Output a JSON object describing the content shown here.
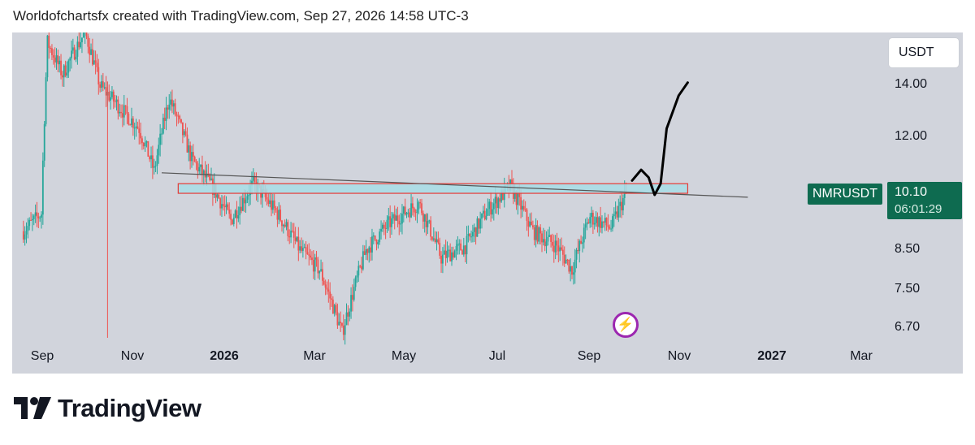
{
  "header": {
    "attribution": "Worldofchartsfx created with TradingView.com, Sep 27, 2026 14:58 UTC-3"
  },
  "toolbar": {
    "currency": "USDT"
  },
  "symbol": {
    "name": "NMRUSDT",
    "last_price": "10.10",
    "countdown": "06:01:29"
  },
  "colors": {
    "up": "#26a69a",
    "down": "#ef5350",
    "background": "#d1d4dc",
    "label": "#0e6b50",
    "zone_fill": "#a8dde6",
    "zone_border": "#e53935",
    "icon": "#9c27b0"
  },
  "footer": {
    "logo_text": "TradingView",
    "logo_icon": "tradingview-logo-icon"
  },
  "chart_data": {
    "type": "candlestick",
    "yscale": "log",
    "ylim": [
      6.3,
      16.5
    ],
    "y_ticks": [
      "14.00",
      "12.00",
      "8.50",
      "7.50",
      "6.70"
    ],
    "x_ticks": [
      {
        "label": "Sep",
        "bold": false
      },
      {
        "label": "Nov",
        "bold": false
      },
      {
        "label": "2026",
        "bold": true
      },
      {
        "label": "Mar",
        "bold": false
      },
      {
        "label": "May",
        "bold": false
      },
      {
        "label": "Jul",
        "bold": false
      },
      {
        "label": "Sep",
        "bold": false
      },
      {
        "label": "Nov",
        "bold": false
      },
      {
        "label": "2027",
        "bold": true
      },
      {
        "label": "Mar",
        "bold": false
      }
    ],
    "close_path": [
      [
        "2025-08-20",
        9.0
      ],
      [
        "2025-09-01",
        9.5
      ],
      [
        "2025-09-05",
        16.0
      ],
      [
        "2025-09-15",
        14.5
      ],
      [
        "2025-09-30",
        16.5
      ],
      [
        "2025-10-10",
        14.0
      ],
      [
        "2025-10-25",
        13.0
      ],
      [
        "2025-11-05",
        12.3
      ],
      [
        "2025-11-15",
        10.8
      ],
      [
        "2025-11-25",
        13.5
      ],
      [
        "2025-12-10",
        11.2
      ],
      [
        "2025-12-25",
        10.2
      ],
      [
        "2026-01-05",
        9.3
      ],
      [
        "2026-01-20",
        10.4
      ],
      [
        "2026-02-05",
        9.5
      ],
      [
        "2026-02-20",
        8.5
      ],
      [
        "2026-03-05",
        8.0
      ],
      [
        "2026-03-20",
        6.6
      ],
      [
        "2026-04-05",
        8.5
      ],
      [
        "2026-04-20",
        9.2
      ],
      [
        "2026-05-10",
        9.8
      ],
      [
        "2026-05-25",
        8.3
      ],
      [
        "2026-06-10",
        8.6
      ],
      [
        "2026-06-25",
        9.6
      ],
      [
        "2026-07-10",
        10.3
      ],
      [
        "2026-07-25",
        9.0
      ],
      [
        "2026-08-10",
        8.6
      ],
      [
        "2026-08-20",
        8.0
      ],
      [
        "2026-09-01",
        9.4
      ],
      [
        "2026-09-15",
        9.1
      ],
      [
        "2026-09-25",
        10.1
      ]
    ],
    "annotations": {
      "resistance_zone": {
        "from": "2025-12-01",
        "to": "2026-11-05",
        "low": 10.1,
        "high": 10.4
      },
      "trendline": {
        "from": [
          "2025-11-20",
          10.75
        ],
        "to": [
          "2026-12-15",
          9.98
        ]
      },
      "projection_path": [
        [
          "2026-09-29",
          10.5
        ],
        [
          "2026-10-05",
          10.85
        ],
        [
          "2026-10-10",
          10.6
        ],
        [
          "2026-10-14",
          10.05
        ],
        [
          "2026-10-18",
          10.4
        ],
        [
          "2026-10-22",
          12.3
        ],
        [
          "2026-10-30",
          13.6
        ],
        [
          "2026-11-05",
          14.15
        ]
      ]
    }
  }
}
